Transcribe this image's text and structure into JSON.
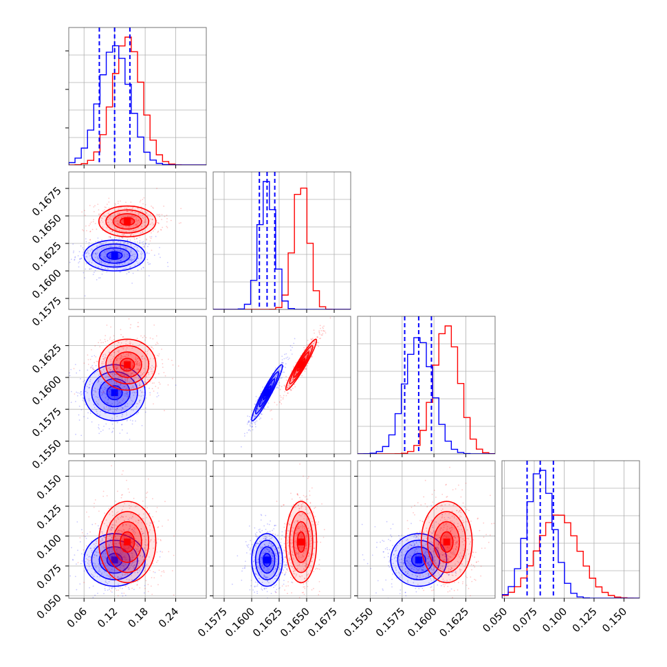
{
  "chart_data": {
    "type": "corner",
    "title": "",
    "grid": true,
    "legend": "none",
    "parameters": [
      {
        "range": [
          0.03,
          0.3
        ],
        "ticks": [
          0.06,
          0.12,
          0.18,
          0.24
        ],
        "tick_labels": [
          "0.06",
          "0.12",
          "0.18",
          "0.24"
        ]
      },
      {
        "range": [
          0.1565,
          0.169
        ],
        "ticks": [
          0.1575,
          0.16,
          0.1625,
          0.165,
          0.1675
        ],
        "tick_labels": [
          "0.1575",
          "0.1600",
          "0.1625",
          "0.1650",
          "0.1675"
        ]
      },
      {
        "range": [
          0.154,
          0.1648
        ],
        "ticks": [
          0.155,
          0.1575,
          0.16,
          0.1625
        ],
        "tick_labels": [
          "0.1550",
          "0.1575",
          "0.1600",
          "0.1625"
        ]
      },
      {
        "range": [
          0.048,
          0.163
        ],
        "ticks": [
          0.05,
          0.075,
          0.1,
          0.125,
          0.15
        ],
        "tick_labels": [
          "0.050",
          "0.075",
          "0.100",
          "0.125",
          "0.150"
        ]
      }
    ],
    "series": [
      {
        "color": "#0000ff",
        "means": [
          0.12,
          0.1614,
          0.1588,
          0.08
        ],
        "sigmas": [
          0.03,
          0.0007,
          0.0011,
          0.011
        ],
        "correlations": {
          "1-0": 0.0,
          "2-0": 0.0,
          "2-1": 0.95,
          "3-0": 0.0,
          "3-1": 0.0,
          "3-2": 0.0
        },
        "quantile_lines": [
          [
            0.09,
            0.12,
            0.15
          ],
          [
            0.1607,
            0.1614,
            0.1621
          ],
          [
            0.1577,
            0.1588,
            0.1598
          ],
          [
            0.069,
            0.08,
            0.091
          ]
        ]
      },
      {
        "color": "#ff0000",
        "means": [
          0.145,
          0.1645,
          0.161,
          0.095
        ],
        "sigmas": [
          0.028,
          0.0007,
          0.001,
          0.017
        ],
        "correlations": {
          "1-0": 0.0,
          "2-0": 0.0,
          "2-1": 0.95,
          "3-0": 0.0,
          "3-1": 0.0,
          "3-2": 0.0
        }
      }
    ]
  }
}
